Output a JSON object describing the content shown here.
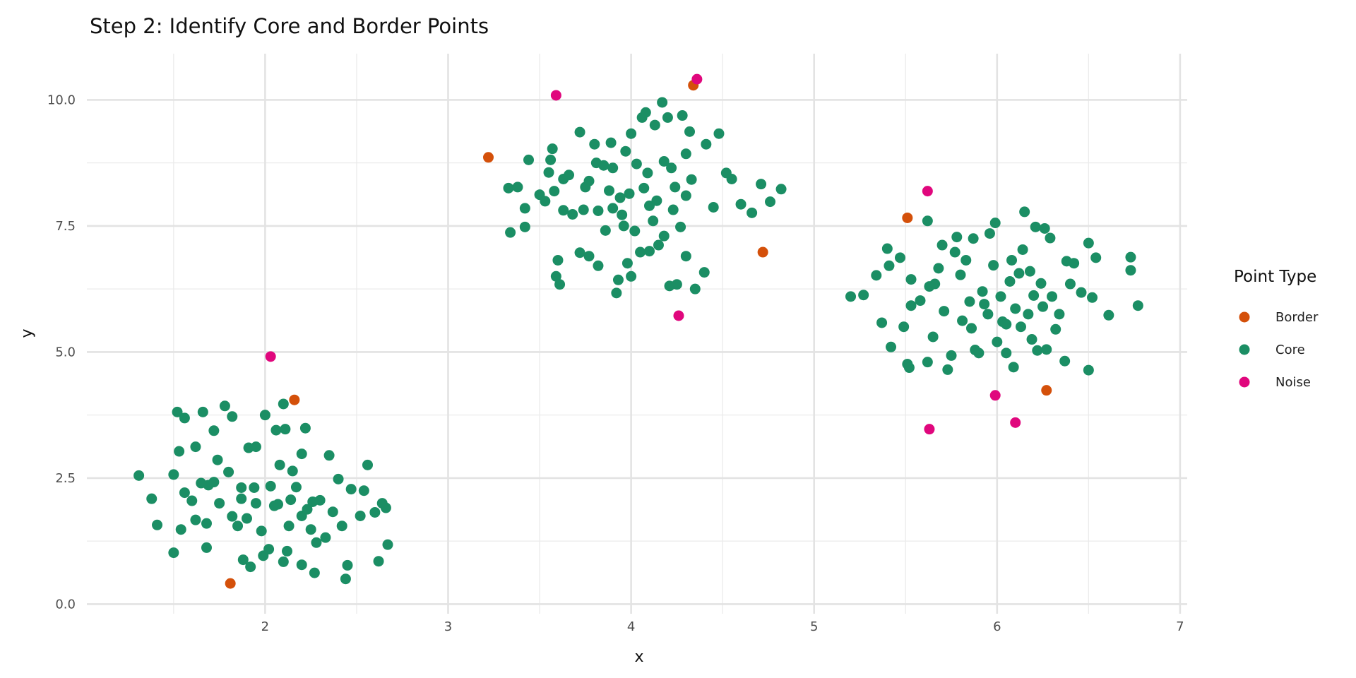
{
  "chart_data": {
    "type": "scatter",
    "title": "Step 2: Identify Core and Border Points",
    "xlabel": "x",
    "ylabel": "y",
    "xlim": [
      1.1,
      7.05
    ],
    "ylim": [
      -0.1,
      10.95
    ],
    "x_ticks": [
      2,
      3,
      4,
      5,
      6,
      7
    ],
    "x_tick_labels": [
      "2",
      "3",
      "4",
      "5",
      "6",
      "7"
    ],
    "y_ticks": [
      0,
      2.5,
      5,
      7.5,
      10
    ],
    "y_tick_labels": [
      "0.0",
      "2.5",
      "5.0",
      "7.5",
      "10.0"
    ],
    "grid": true,
    "legend": {
      "title": "Point Type",
      "position": "right"
    },
    "series": [
      {
        "name": "Border",
        "color": "#D4500A",
        "points": [
          [
            3.22,
            8.86
          ],
          [
            4.34,
            10.29
          ],
          [
            4.72,
            6.98
          ],
          [
            5.51,
            7.66
          ],
          [
            6.27,
            4.24
          ],
          [
            2.16,
            4.05
          ],
          [
            1.81,
            0.41
          ]
        ]
      },
      {
        "name": "Core",
        "color": "#1B8E64",
        "points": [
          [
            1.31,
            2.55
          ],
          [
            1.38,
            2.09
          ],
          [
            1.41,
            1.57
          ],
          [
            1.5,
            1.02
          ],
          [
            1.5,
            2.57
          ],
          [
            1.52,
            3.81
          ],
          [
            1.53,
            3.03
          ],
          [
            1.54,
            1.48
          ],
          [
            1.56,
            2.21
          ],
          [
            1.56,
            3.69
          ],
          [
            1.62,
            3.12
          ],
          [
            1.66,
            3.81
          ],
          [
            1.72,
            3.44
          ],
          [
            1.65,
            2.4
          ],
          [
            1.68,
            1.6
          ],
          [
            1.69,
            2.36
          ],
          [
            1.74,
            2.86
          ],
          [
            1.78,
            3.93
          ],
          [
            1.82,
            3.72
          ],
          [
            1.8,
            2.62
          ],
          [
            1.82,
            1.74
          ],
          [
            1.87,
            2.31
          ],
          [
            1.91,
            3.1
          ],
          [
            1.94,
            2.31
          ],
          [
            1.99,
            0.96
          ],
          [
            1.88,
            0.88
          ],
          [
            1.92,
            0.74
          ],
          [
            1.68,
            1.12
          ],
          [
            1.62,
            1.67
          ],
          [
            1.6,
            2.05
          ],
          [
            1.75,
            2.0
          ],
          [
            1.85,
            1.55
          ],
          [
            1.9,
            1.7
          ],
          [
            1.95,
            2.0
          ],
          [
            2.0,
            3.75
          ],
          [
            2.06,
            3.45
          ],
          [
            2.1,
            3.97
          ],
          [
            2.11,
            3.47
          ],
          [
            2.08,
            2.76
          ],
          [
            2.03,
            2.34
          ],
          [
            2.05,
            1.95
          ],
          [
            2.02,
            1.09
          ],
          [
            2.1,
            0.84
          ],
          [
            2.12,
            1.05
          ],
          [
            2.15,
            2.64
          ],
          [
            2.17,
            2.32
          ],
          [
            2.2,
            2.98
          ],
          [
            2.22,
            3.49
          ],
          [
            2.2,
            1.75
          ],
          [
            2.2,
            0.78
          ],
          [
            2.27,
            0.62
          ],
          [
            2.28,
            1.22
          ],
          [
            2.3,
            2.06
          ],
          [
            2.35,
            2.95
          ],
          [
            2.37,
            1.83
          ],
          [
            2.4,
            2.48
          ],
          [
            2.42,
            1.55
          ],
          [
            2.45,
            0.77
          ],
          [
            2.44,
            0.5
          ],
          [
            2.47,
            2.28
          ],
          [
            2.52,
            1.75
          ],
          [
            2.54,
            2.25
          ],
          [
            2.56,
            2.76
          ],
          [
            2.6,
            1.82
          ],
          [
            2.62,
            0.85
          ],
          [
            2.64,
            2.0
          ],
          [
            2.66,
            1.91
          ],
          [
            2.67,
            1.18
          ],
          [
            2.25,
            1.48
          ],
          [
            2.13,
            1.55
          ],
          [
            1.98,
            1.45
          ],
          [
            2.07,
            1.98
          ],
          [
            2.14,
            2.07
          ],
          [
            1.87,
            2.09
          ],
          [
            1.72,
            2.42
          ],
          [
            2.26,
            2.03
          ],
          [
            2.33,
            1.32
          ],
          [
            1.95,
            3.12
          ],
          [
            2.23,
            1.88
          ],
          [
            3.33,
            8.25
          ],
          [
            3.34,
            7.37
          ],
          [
            3.38,
            8.27
          ],
          [
            3.42,
            7.48
          ],
          [
            3.42,
            7.85
          ],
          [
            3.44,
            8.81
          ],
          [
            3.5,
            8.12
          ],
          [
            3.53,
            7.99
          ],
          [
            3.55,
            8.56
          ],
          [
            3.56,
            8.81
          ],
          [
            3.57,
            9.03
          ],
          [
            3.58,
            8.19
          ],
          [
            3.59,
            6.5
          ],
          [
            3.6,
            6.82
          ],
          [
            3.61,
            6.34
          ],
          [
            3.63,
            7.81
          ],
          [
            3.63,
            8.43
          ],
          [
            3.66,
            8.51
          ],
          [
            3.68,
            7.73
          ],
          [
            3.72,
            9.36
          ],
          [
            3.72,
            6.97
          ],
          [
            3.74,
            7.82
          ],
          [
            3.75,
            8.27
          ],
          [
            3.77,
            6.9
          ],
          [
            3.77,
            8.39
          ],
          [
            3.8,
            9.12
          ],
          [
            3.81,
            8.75
          ],
          [
            3.82,
            6.71
          ],
          [
            3.82,
            7.8
          ],
          [
            3.85,
            8.7
          ],
          [
            3.86,
            7.41
          ],
          [
            3.89,
            9.15
          ],
          [
            3.9,
            7.85
          ],
          [
            3.9,
            8.65
          ],
          [
            3.92,
            6.17
          ],
          [
            3.93,
            6.43
          ],
          [
            3.94,
            8.06
          ],
          [
            3.96,
            7.5
          ],
          [
            3.97,
            8.98
          ],
          [
            3.98,
            6.76
          ],
          [
            3.99,
            8.14
          ],
          [
            4.0,
            6.5
          ],
          [
            4.0,
            9.33
          ],
          [
            4.02,
            7.4
          ],
          [
            4.03,
            8.73
          ],
          [
            4.05,
            6.98
          ],
          [
            4.06,
            9.65
          ],
          [
            4.08,
            9.75
          ],
          [
            4.1,
            7.9
          ],
          [
            4.12,
            7.6
          ],
          [
            4.13,
            9.5
          ],
          [
            4.15,
            7.12
          ],
          [
            4.17,
            9.95
          ],
          [
            4.18,
            8.78
          ],
          [
            4.2,
            9.65
          ],
          [
            4.21,
            6.31
          ],
          [
            4.23,
            7.82
          ],
          [
            4.24,
            8.27
          ],
          [
            4.25,
            6.34
          ],
          [
            4.28,
            9.69
          ],
          [
            4.3,
            8.93
          ],
          [
            4.3,
            6.9
          ],
          [
            4.32,
            9.37
          ],
          [
            4.33,
            8.42
          ],
          [
            4.35,
            6.25
          ],
          [
            4.4,
            6.58
          ],
          [
            4.41,
            9.12
          ],
          [
            4.45,
            7.87
          ],
          [
            4.48,
            9.33
          ],
          [
            4.52,
            8.55
          ],
          [
            4.55,
            8.43
          ],
          [
            4.6,
            7.93
          ],
          [
            4.66,
            7.76
          ],
          [
            4.71,
            8.33
          ],
          [
            4.76,
            7.98
          ],
          [
            4.82,
            8.23
          ],
          [
            4.07,
            8.25
          ],
          [
            4.14,
            8.0
          ],
          [
            3.95,
            7.72
          ],
          [
            4.18,
            7.3
          ],
          [
            4.27,
            7.48
          ],
          [
            4.1,
            7.0
          ],
          [
            3.88,
            8.2
          ],
          [
            4.22,
            8.65
          ],
          [
            4.3,
            8.1
          ],
          [
            4.09,
            8.55
          ],
          [
            5.2,
            6.1
          ],
          [
            5.27,
            6.13
          ],
          [
            5.34,
            6.52
          ],
          [
            5.37,
            5.58
          ],
          [
            5.4,
            7.05
          ],
          [
            5.41,
            6.71
          ],
          [
            5.42,
            5.1
          ],
          [
            5.47,
            6.87
          ],
          [
            5.49,
            5.5
          ],
          [
            5.51,
            4.76
          ],
          [
            5.52,
            4.69
          ],
          [
            5.53,
            6.44
          ],
          [
            5.53,
            5.92
          ],
          [
            5.58,
            6.02
          ],
          [
            5.62,
            7.6
          ],
          [
            5.62,
            4.8
          ],
          [
            5.63,
            6.3
          ],
          [
            5.65,
            5.3
          ],
          [
            5.66,
            6.35
          ],
          [
            5.68,
            6.66
          ],
          [
            5.7,
            7.12
          ],
          [
            5.71,
            5.81
          ],
          [
            5.73,
            4.65
          ],
          [
            5.75,
            4.93
          ],
          [
            5.77,
            6.98
          ],
          [
            5.78,
            7.28
          ],
          [
            5.8,
            6.53
          ],
          [
            5.81,
            5.62
          ],
          [
            5.83,
            6.82
          ],
          [
            5.86,
            5.47
          ],
          [
            5.87,
            7.25
          ],
          [
            5.88,
            5.04
          ],
          [
            5.9,
            4.98
          ],
          [
            5.92,
            6.2
          ],
          [
            5.96,
            7.35
          ],
          [
            5.98,
            6.72
          ],
          [
            5.99,
            7.56
          ],
          [
            6.0,
            5.2
          ],
          [
            6.02,
            6.1
          ],
          [
            6.03,
            5.6
          ],
          [
            6.05,
            4.98
          ],
          [
            6.05,
            5.55
          ],
          [
            6.08,
            6.82
          ],
          [
            6.09,
            4.7
          ],
          [
            6.1,
            5.86
          ],
          [
            6.12,
            6.56
          ],
          [
            6.14,
            7.03
          ],
          [
            6.15,
            7.78
          ],
          [
            6.17,
            5.75
          ],
          [
            6.19,
            5.25
          ],
          [
            6.2,
            6.12
          ],
          [
            6.21,
            7.48
          ],
          [
            6.22,
            5.03
          ],
          [
            6.24,
            6.36
          ],
          [
            6.26,
            7.45
          ],
          [
            6.27,
            5.05
          ],
          [
            6.29,
            7.26
          ],
          [
            6.3,
            6.1
          ],
          [
            6.32,
            5.45
          ],
          [
            6.34,
            5.75
          ],
          [
            6.37,
            4.82
          ],
          [
            6.38,
            6.8
          ],
          [
            6.4,
            6.35
          ],
          [
            6.42,
            6.76
          ],
          [
            6.46,
            6.18
          ],
          [
            6.5,
            7.16
          ],
          [
            6.5,
            4.64
          ],
          [
            6.52,
            6.08
          ],
          [
            6.54,
            6.87
          ],
          [
            6.61,
            5.73
          ],
          [
            6.73,
            6.88
          ],
          [
            6.73,
            6.62
          ],
          [
            6.77,
            5.92
          ],
          [
            5.93,
            5.95
          ],
          [
            6.13,
            5.5
          ],
          [
            5.85,
            6.0
          ],
          [
            6.07,
            6.4
          ],
          [
            5.95,
            5.75
          ],
          [
            6.25,
            5.9
          ],
          [
            6.18,
            6.6
          ]
        ]
      },
      {
        "name": "Noise",
        "color": "#E0077D",
        "points": [
          [
            3.59,
            10.09
          ],
          [
            4.36,
            10.41
          ],
          [
            4.26,
            5.72
          ],
          [
            5.62,
            8.19
          ],
          [
            2.03,
            4.91
          ],
          [
            5.99,
            4.14
          ],
          [
            5.63,
            3.47
          ],
          [
            6.1,
            3.6
          ]
        ]
      }
    ]
  }
}
